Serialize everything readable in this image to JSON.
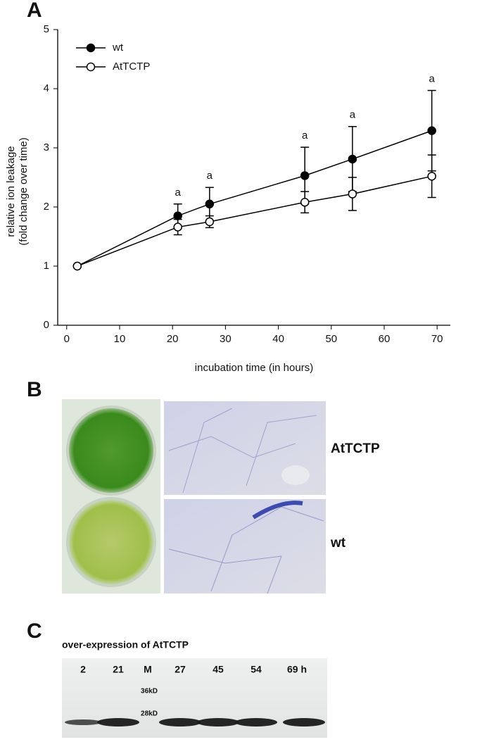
{
  "panel_labels": [
    "A",
    "B",
    "C"
  ],
  "chart_data": {
    "type": "line",
    "x": [
      2,
      21,
      27,
      45,
      54,
      69
    ],
    "series": [
      {
        "name": "wt",
        "color": "#000000",
        "marker_fill": "#000000",
        "values": [
          1,
          1.85,
          2.05,
          2.53,
          2.81,
          3.29
        ],
        "errors": [
          null,
          0.2,
          0.28,
          0.48,
          0.55,
          0.68
        ]
      },
      {
        "name": "AtTCTP",
        "color": "#000000",
        "marker_fill": "#ffffff",
        "values": [
          1,
          1.66,
          1.75,
          2.08,
          2.22,
          2.52
        ],
        "errors": [
          null,
          0.13,
          0.1,
          0.18,
          0.28,
          0.36
        ]
      }
    ],
    "annotations": [
      {
        "x": 21,
        "text": "a"
      },
      {
        "x": 27,
        "text": "a"
      },
      {
        "x": 45,
        "text": "a"
      },
      {
        "x": 54,
        "text": "a"
      },
      {
        "x": 69,
        "text": "a"
      }
    ],
    "xlabel": "incubation time (in hours)",
    "ylabel": [
      "relative ion leakage",
      "(fold change over time)"
    ],
    "xlim": [
      -1.7,
      72.5
    ],
    "ylim": [
      0,
      5
    ],
    "xticks": [
      0,
      10,
      20,
      30,
      40,
      50,
      60,
      70
    ],
    "yticks": [
      0,
      1,
      2,
      3,
      4,
      5
    ],
    "legend": "upper left"
  },
  "panel_b": {
    "labels": [
      "AtTCTP",
      "wt"
    ]
  },
  "panel_c": {
    "title": "over-expression of AtTCTP",
    "lanes": [
      "2",
      "21",
      "M",
      "27",
      "45",
      "54",
      "69 h"
    ],
    "markers": [
      "36kD",
      "28kD"
    ]
  }
}
